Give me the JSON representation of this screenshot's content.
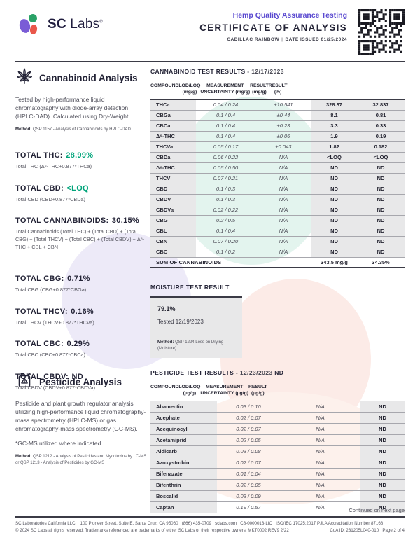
{
  "colors": {
    "accent_teal": "#00a47a",
    "brand_purple": "#5a49d0",
    "logo_purple": "#7a5cd6",
    "logo_green": "#2aa267",
    "logo_red": "#e9574a"
  },
  "header": {
    "logo_sc": "SC",
    "logo_labs": "Labs",
    "registered": "®",
    "program": "Hemp Quality Assurance Testing",
    "title": "CERTIFICATE OF ANALYSIS",
    "sample_name": "CADILLAC RAINBOW",
    "separator": "|",
    "date_issued": "DATE ISSUED 01/25/2024"
  },
  "cannabinoid_section": {
    "title": "Cannabinoid Analysis",
    "description": "Tested by high-performance liquid chromatography with diode-array detection (HPLC-DAD). Calculated using Dry-Weight.",
    "method_label": "Method:",
    "method": "QSP 1157 - Analysis of Cannabinoids by HPLC-DAD",
    "total_thc": {
      "label": "TOTAL THC:",
      "value": "28.99%",
      "sub": "Total THC (Δ⁹-THC+0.877*THCa)"
    },
    "total_cbd": {
      "label": "TOTAL CBD:",
      "value": "<LOQ",
      "sub": "Total CBD (CBD+0.877*CBDa)"
    },
    "total_cannabinoids": {
      "label": "TOTAL CANNABINOIDS:",
      "value": "30.15%",
      "sub": "Total Cannabinoids (Total THC) + (Total CBD) + (Total CBG) + (Total THCV) + (Total CBC) + (Total CBDV) + Δ⁸-THC + CBL + CBN"
    },
    "total_cbg": {
      "label": "TOTAL CBG:",
      "value": "0.71%",
      "sub": "Total CBG (CBG+0.877*CBGa)"
    },
    "total_thcv": {
      "label": "TOTAL THCV:",
      "value": "0.16%",
      "sub": "Total THCV (THCV+0.877*THCVa)"
    },
    "total_cbc": {
      "label": "TOTAL CBC:",
      "value": "0.29%",
      "sub": "Total CBC (CBC+0.877*CBCa)"
    },
    "total_cbdv": {
      "label": "TOTAL CBDV:",
      "value": "ND",
      "sub": "Total CBDV (CBDV+0.877*CBDVa)"
    }
  },
  "cannabinoid_table": {
    "title": "CANNABINOID TEST RESULTS",
    "date_suffix": "- 12/17/2023",
    "columns": [
      {
        "label": "COMPOUND",
        "unit": ""
      },
      {
        "label": "LOD/LOQ",
        "unit": "(mg/g)"
      },
      {
        "label": "MEASUREMENT",
        "unit": "UNCERTAINTY (mg/g)"
      },
      {
        "label": "RESULT",
        "unit": "(mg/g)"
      },
      {
        "label": "RESULT",
        "unit": "(%)"
      }
    ],
    "rows": [
      [
        "THCa",
        "0.04 / 0.24",
        "±10.541",
        "328.37",
        "32.837"
      ],
      [
        "CBGa",
        "0.1 / 0.4",
        "±0.44",
        "8.1",
        "0.81"
      ],
      [
        "CBCa",
        "0.1 / 0.4",
        "±0.23",
        "3.3",
        "0.33"
      ],
      [
        "Δ⁹-THC",
        "0.1 / 0.4",
        "±0.06",
        "1.9",
        "0.19"
      ],
      [
        "THCVa",
        "0.05 / 0.17",
        "±0.043",
        "1.82",
        "0.182"
      ],
      [
        "CBDa",
        "0.06 / 0.22",
        "N/A",
        "<LOQ",
        "<LOQ"
      ],
      [
        "Δ⁸-THC",
        "0.05 / 0.50",
        "N/A",
        "ND",
        "ND"
      ],
      [
        "THCV",
        "0.07 / 0.21",
        "N/A",
        "ND",
        "ND"
      ],
      [
        "CBD",
        "0.1 / 0.3",
        "N/A",
        "ND",
        "ND"
      ],
      [
        "CBDV",
        "0.1 / 0.3",
        "N/A",
        "ND",
        "ND"
      ],
      [
        "CBDVa",
        "0.02 / 0.22",
        "N/A",
        "ND",
        "ND"
      ],
      [
        "CBG",
        "0.2 / 0.5",
        "N/A",
        "ND",
        "ND"
      ],
      [
        "CBL",
        "0.1 / 0.4",
        "N/A",
        "ND",
        "ND"
      ],
      [
        "CBN",
        "0.07 / 0.20",
        "N/A",
        "ND",
        "ND"
      ],
      [
        "CBC",
        "0.1 / 0.2",
        "N/A",
        "ND",
        "ND"
      ]
    ],
    "sum_label": "SUM OF CANNABINOIDS",
    "sum_mg": "343.5 mg/g",
    "sum_pct": "34.35%"
  },
  "moisture": {
    "title": "MOISTURE TEST RESULT",
    "value": "79.1%",
    "tested": "Tested 12/19/2023",
    "method_label": "Method:",
    "method": "QSP 1224  Loss on Drying (Moisture)"
  },
  "pesticide_section": {
    "title": "Pesticide Analysis",
    "description": "Pesticide and plant growth regulator analysis utilizing high-performance liquid chromatography-mass spectrometry (HPLC-MS) or gas chromatography-mass spectrometry (GC-MS).",
    "note": "*GC-MS utilized where indicated.",
    "method_label": "Method:",
    "method": "QSP 1212 - Analysis of Pesticides and Mycotoxins by LC-MS or QSP 1213 - Analysis of Pesticides by GC-MS"
  },
  "pesticide_table": {
    "title": "PESTICIDE TEST RESULTS",
    "date_suffix": "- 12/23/2023",
    "nd_flag": "ND",
    "columns": [
      {
        "label": "COMPOUND",
        "unit": ""
      },
      {
        "label": "LOD/LOQ",
        "unit": "(µg/g)"
      },
      {
        "label": "MEASUREMENT",
        "unit": "UNCERTAINTY (µg/g)"
      },
      {
        "label": "RESULT",
        "unit": "(µg/g)"
      }
    ],
    "rows": [
      [
        "Abamectin",
        "0.03 / 0.10",
        "N/A",
        "ND"
      ],
      [
        "Acephate",
        "0.02 / 0.07",
        "N/A",
        "ND"
      ],
      [
        "Acequinocyl",
        "0.02 / 0.07",
        "N/A",
        "ND"
      ],
      [
        "Acetamiprid",
        "0.02 / 0.05",
        "N/A",
        "ND"
      ],
      [
        "Aldicarb",
        "0.03 / 0.08",
        "N/A",
        "ND"
      ],
      [
        "Azoxystrobin",
        "0.02 / 0.07",
        "N/A",
        "ND"
      ],
      [
        "Bifenazate",
        "0.01 / 0.04",
        "N/A",
        "ND"
      ],
      [
        "Bifenthrin",
        "0.02 / 0.05",
        "N/A",
        "ND"
      ],
      [
        "Boscalid",
        "0.03 / 0.09",
        "N/A",
        "ND"
      ],
      [
        "Captan",
        "0.19 / 0.57",
        "N/A",
        "ND"
      ]
    ]
  },
  "continued": "Continued on next page",
  "footer": {
    "line1": "SC Laboratories California LLC.   100 Pioneer Street, Suite E, Santa Cruz, CA 95060   (866) 435-0709   sclabs.com   C8-0000013-LIC   ISO/IEC 17025:2017 PJLA Accreditation Number 87168",
    "line2_left": "© 2024 SC Labs all rights reserved. Trademarks referenced are trademarks of either SC Labs or their respective owners. MKT0002 REV9 2/22",
    "line2_right": "CoA ID: 231205L040-010   Page 2 of 4"
  }
}
